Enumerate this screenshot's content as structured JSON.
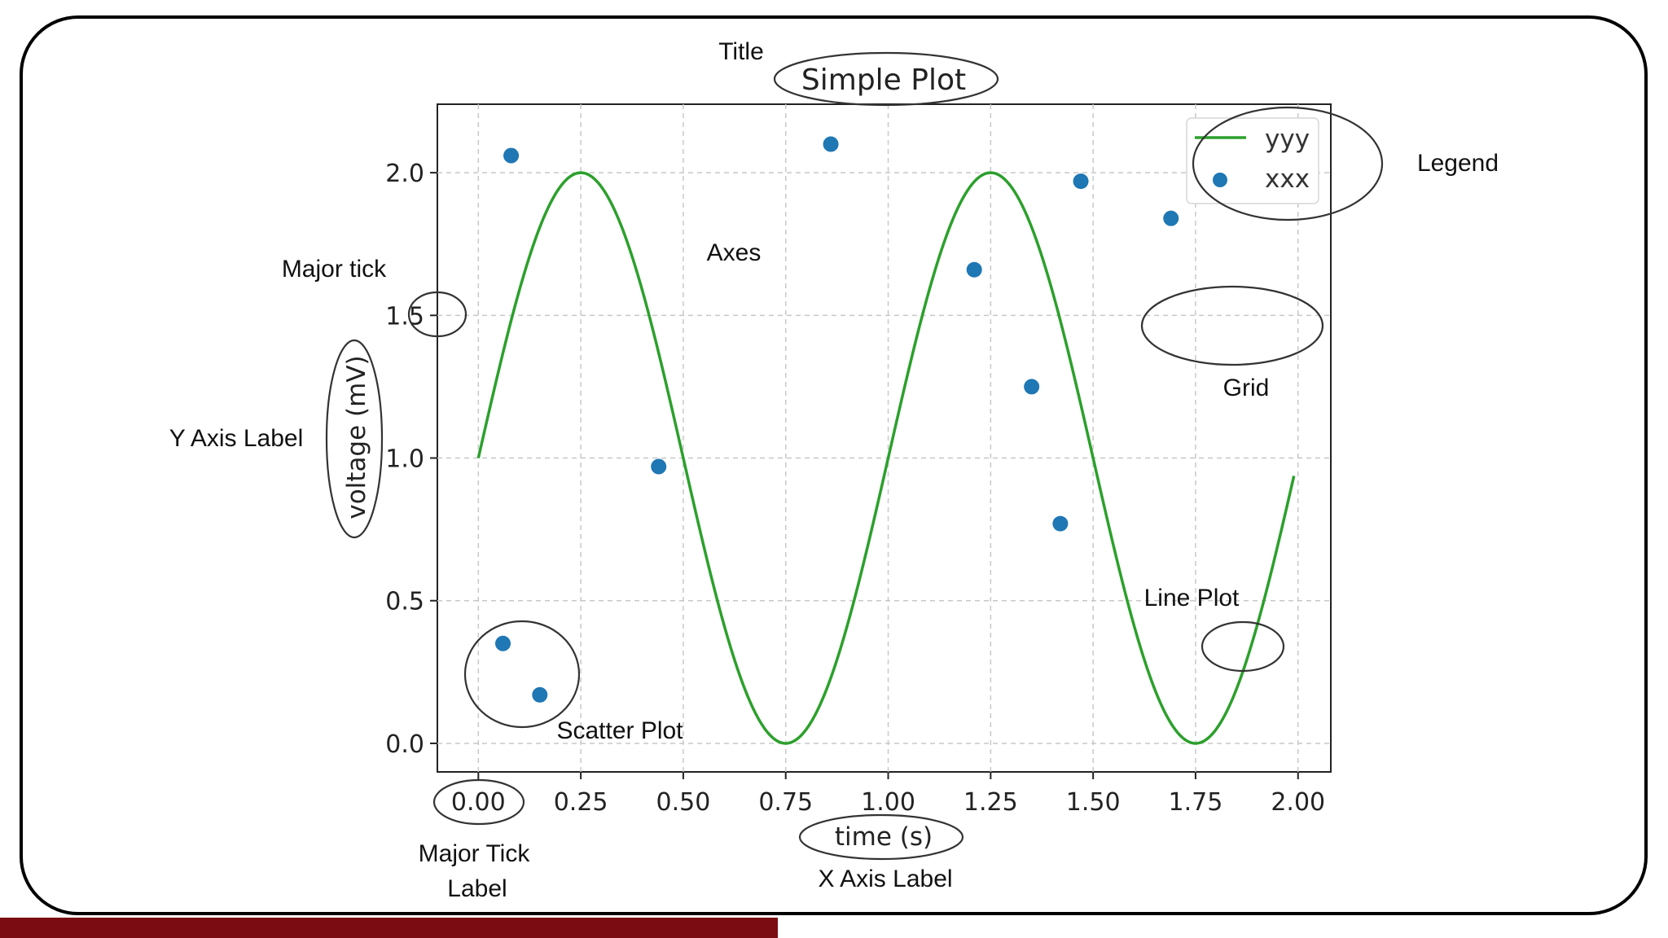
{
  "chart_data": {
    "type": "line",
    "title": "Simple Plot",
    "xlabel": "time (s)",
    "ylabel": "voltage (mV)",
    "xlim": [
      -0.1,
      2.08
    ],
    "ylim": [
      -0.1,
      2.24
    ],
    "xticks": [
      "0.00",
      "0.25",
      "0.50",
      "0.75",
      "1.00",
      "1.25",
      "1.50",
      "1.75",
      "2.00"
    ],
    "xtick_values": [
      0,
      0.25,
      0.5,
      0.75,
      1.0,
      1.25,
      1.5,
      1.75,
      2.0
    ],
    "yticks": [
      "0.0",
      "0.5",
      "1.0",
      "1.5",
      "2.0"
    ],
    "ytick_values": [
      0,
      0.5,
      1.0,
      1.5,
      2.0
    ],
    "grid": true,
    "legend_position": "top-right",
    "series": [
      {
        "name": "yyy",
        "kind": "line",
        "color": "#2ca02c",
        "function": "1 + sin(2*pi*t)",
        "x_range": [
          0,
          1.99
        ]
      },
      {
        "name": "xxx",
        "kind": "scatter",
        "color": "#1f77b4",
        "points": [
          [
            0.08,
            2.06
          ],
          [
            0.06,
            0.35
          ],
          [
            0.15,
            0.17
          ],
          [
            0.44,
            0.97
          ],
          [
            0.86,
            2.1
          ],
          [
            1.21,
            1.66
          ],
          [
            1.35,
            1.25
          ],
          [
            1.42,
            0.77
          ],
          [
            1.47,
            1.97
          ],
          [
            1.69,
            1.84
          ]
        ]
      }
    ]
  },
  "annotations": {
    "title": "Title",
    "legend": "Legend",
    "axes": "Axes",
    "major_tick": "Major tick",
    "grid": "Grid",
    "y_axis_label": "Y Axis Label",
    "line_plot": "Line Plot",
    "scatter_plot": "Scatter Plot",
    "major_tick_label_line1": "Major Tick",
    "major_tick_label_line2": "Label",
    "x_axis_label": "X Axis Label"
  },
  "colors": {
    "frame": "#000000",
    "bottom_bar": "#7a0c12",
    "line": "#2ca02c",
    "scatter": "#1f77b4"
  }
}
